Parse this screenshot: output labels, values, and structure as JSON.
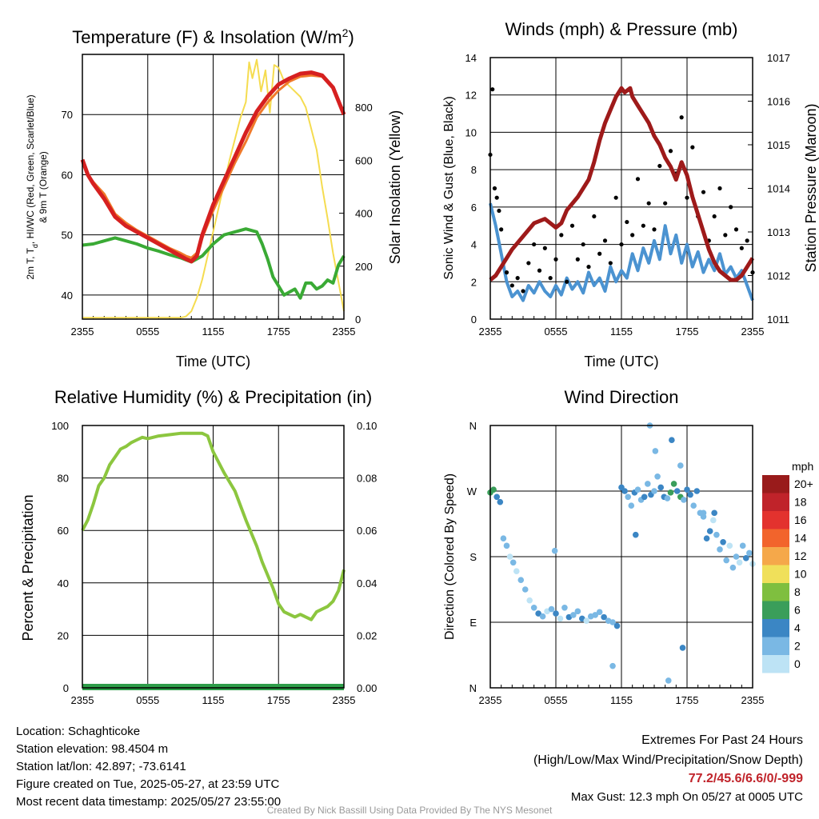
{
  "footer": {
    "location": "Location: Schaghticoke",
    "elevation": "Station elevation: 98.4504 m",
    "latlon": "Station lat/lon: 42.897; -73.6141",
    "created": "Figure created on Tue, 2025-05-27, at 23:59 UTC",
    "recent": "Most recent data timestamp: 2025/05/27 23:55:00",
    "extremes_title": "Extremes For Past 24 Hours",
    "extremes_sub": "(High/Low/Max Wind/Precipitation/Snow Depth)",
    "extremes_values": "77.2/45.6/6.6/0/-999",
    "max_gust": "Max Gust: 12.3 mph On 05/27 at 0005 UTC",
    "credit": "Created By Nick Bassill Using Data Provided By The NYS Mesonet"
  },
  "colors": {
    "temp": "#d62020",
    "temp_9m": "#f07a2a",
    "hiwc": "#e04030",
    "dewpoint": "#3aaa35",
    "solar": "#f5dc50",
    "rh": "#8cc63f",
    "precip": "#2e9e4a",
    "wind": "#4b93d1",
    "gust": "#000000",
    "pressure": "#9e1a1a"
  },
  "chart_data": [
    {
      "id": "temp",
      "type": "line",
      "title": "Temperature (F) & Insolation (W/m",
      "title_sup": "2",
      "title_end": ")",
      "xlabel": "Time (UTC)",
      "ylabel_lines": [
        "2m T, T",
        "d",
        ", HI/WC (Red, Green, Scarlet/Blue)",
        "& 9m T (Orange)"
      ],
      "y2label": "Solar Insolation (Yellow)",
      "x_ticks": [
        "2355",
        "0555",
        "1155",
        "1755",
        "2355"
      ],
      "x_hours": [
        0,
        6,
        12,
        18,
        24
      ],
      "xlim": [
        0,
        24
      ],
      "ylim": [
        36,
        80
      ],
      "y_ticks": [
        40,
        50,
        60,
        70
      ],
      "y2lim": [
        0,
        1000
      ],
      "y2_ticks": [
        0,
        200,
        400,
        600,
        800
      ],
      "series": [
        {
          "name": "2m T",
          "color": "#d62020",
          "width": 5,
          "axis": "y",
          "x": [
            0,
            0.5,
            1,
            2,
            3,
            4,
            5,
            6,
            7,
            8,
            9,
            9.5,
            10,
            10.5,
            11,
            12,
            13,
            14,
            15,
            16,
            17,
            18,
            19,
            20,
            21,
            22,
            23,
            24
          ],
          "y": [
            62.5,
            60,
            58.5,
            56,
            53,
            51.5,
            50.5,
            49.5,
            48.5,
            47.5,
            46.5,
            46,
            45.6,
            46.5,
            50,
            55,
            59,
            63,
            67,
            70.5,
            73,
            75,
            76,
            76.8,
            77,
            76.5,
            74.5,
            70
          ]
        },
        {
          "name": "9m T",
          "color": "#f07a2a",
          "width": 3,
          "axis": "y",
          "x": [
            0,
            0.5,
            1,
            2,
            3,
            4,
            5,
            6,
            7,
            8,
            9,
            9.5,
            10,
            10.5,
            11,
            12,
            13,
            14,
            15,
            16,
            17,
            18,
            19,
            20,
            21,
            22,
            23,
            24
          ],
          "y": [
            62,
            60,
            58.8,
            56.8,
            53.5,
            52,
            50.8,
            49.8,
            48.8,
            47.8,
            47,
            46.5,
            46.2,
            47,
            49.5,
            54,
            58,
            62,
            65.5,
            69.5,
            72,
            74,
            75.5,
            76.3,
            76.5,
            76.3,
            74.5,
            70
          ]
        },
        {
          "name": "Td",
          "color": "#3aaa35",
          "width": 4,
          "axis": "y",
          "x": [
            0,
            1,
            2,
            3,
            4,
            5,
            6,
            7,
            8,
            9,
            10,
            11,
            12,
            13,
            14,
            15,
            16,
            16.5,
            17,
            17.5,
            18,
            18.5,
            19,
            19.5,
            20,
            20.5,
            21,
            21.5,
            22,
            22.5,
            23,
            23.5,
            24
          ],
          "y": [
            48.3,
            48.5,
            49,
            49.5,
            49,
            48.5,
            47.8,
            47.3,
            46.7,
            46.2,
            45.5,
            46.5,
            48.5,
            50,
            50.5,
            51,
            50.5,
            48.5,
            46,
            43,
            41.5,
            40,
            40.5,
            41,
            39.5,
            42,
            42,
            41,
            41.5,
            42.5,
            42,
            45,
            46.5
          ]
        },
        {
          "name": "Solar",
          "color": "#f5dc50",
          "width": 2,
          "axis": "y2",
          "x": [
            0,
            3,
            6,
            8,
            9,
            9.5,
            10,
            10.5,
            11,
            11.5,
            12,
            12.5,
            13,
            13.5,
            14,
            14.5,
            15,
            15.3,
            15.6,
            16,
            16.4,
            16.8,
            17.2,
            17.6,
            18,
            18.5,
            19,
            19.5,
            20,
            20.5,
            21,
            21.5,
            22,
            22.5,
            23,
            23.5,
            24
          ],
          "y": [
            5,
            5,
            5,
            5,
            5,
            10,
            30,
            80,
            150,
            240,
            330,
            420,
            510,
            600,
            680,
            760,
            820,
            970,
            910,
            980,
            860,
            940,
            780,
            960,
            950,
            900,
            880,
            860,
            840,
            800,
            720,
            640,
            500,
            380,
            250,
            140,
            30
          ]
        }
      ]
    },
    {
      "id": "winds",
      "type": "line",
      "title": "Winds (mph) & Pressure (mb)",
      "xlabel": "Time (UTC)",
      "ylabel": "Sonic Wind & Gust (Blue, Black)",
      "y2label": "Station Pressure (Maroon)",
      "x_ticks": [
        "2355",
        "0555",
        "1155",
        "1755",
        "2355"
      ],
      "x_hours": [
        0,
        6,
        12,
        18,
        24
      ],
      "xlim": [
        0,
        24
      ],
      "ylim": [
        0,
        14
      ],
      "y_ticks": [
        0,
        2,
        4,
        6,
        8,
        10,
        12,
        14
      ],
      "y2lim": [
        1011,
        1017
      ],
      "y2_ticks": [
        1011,
        1012,
        1013,
        1014,
        1015,
        1016,
        1017
      ],
      "wind": {
        "x": [
          0,
          0.5,
          1,
          1.5,
          2,
          2.5,
          3,
          3.5,
          4,
          4.5,
          5,
          5.5,
          6,
          6.5,
          7,
          7.5,
          8,
          8.5,
          9,
          9.5,
          10,
          10.5,
          11,
          11.5,
          12,
          12.5,
          13,
          13.5,
          14,
          14.5,
          15,
          15.5,
          16,
          16.5,
          17,
          17.5,
          18,
          18.5,
          19,
          19.5,
          20,
          20.5,
          21,
          21.5,
          22,
          22.5,
          23,
          23.5,
          24
        ],
        "y": [
          6.2,
          5,
          3.5,
          2,
          1.2,
          1.5,
          1,
          1.8,
          1.4,
          2,
          1.5,
          1.2,
          1.8,
          1.3,
          2.2,
          1.6,
          2,
          1.4,
          2.5,
          1.8,
          2.2,
          1.5,
          2.8,
          2,
          2.6,
          2.2,
          3.5,
          2.6,
          3.8,
          3,
          4.2,
          3.2,
          5,
          3.5,
          4.5,
          3,
          4,
          2.8,
          3.6,
          2.5,
          3.2,
          2.6,
          3.5,
          2.4,
          2.8,
          2.2,
          2.6,
          1.8,
          1
        ]
      },
      "gust": {
        "x": [
          0,
          0.2,
          0.4,
          0.6,
          0.8,
          1,
          1.5,
          2,
          2.5,
          3,
          3.5,
          4,
          4.5,
          5,
          5.5,
          6,
          6.5,
          7,
          7.5,
          8,
          8.5,
          9,
          9.5,
          10,
          10.5,
          11,
          11.5,
          12,
          12.5,
          13,
          13.5,
          14,
          14.5,
          15,
          15.5,
          16,
          16.5,
          17,
          17.5,
          18,
          18.5,
          19,
          19.5,
          20,
          20.5,
          21,
          21.5,
          22,
          22.5,
          23,
          23.5,
          24
        ],
        "y": [
          8.8,
          12.3,
          7,
          6.5,
          5.8,
          4.8,
          2.5,
          1.8,
          2.2,
          1.5,
          3,
          4,
          2.6,
          3.8,
          2.2,
          3.2,
          4.5,
          2,
          5,
          3.2,
          4,
          2.8,
          5.5,
          3.5,
          4.2,
          3,
          6.5,
          4,
          5.2,
          4.5,
          7.5,
          5,
          6.2,
          4.8,
          8.2,
          6.2,
          9,
          7.8,
          10.8,
          6.5,
          9.2,
          5.5,
          6.8,
          4.2,
          5.5,
          7,
          4.5,
          6,
          4.8,
          3.8,
          4.2,
          2.5
        ]
      },
      "pressure": {
        "x": [
          0,
          0.5,
          1,
          2,
          3,
          4,
          5,
          6,
          6.5,
          7,
          8,
          9,
          9.5,
          10,
          10.5,
          11,
          11.5,
          12,
          12.3,
          12.8,
          13,
          13.5,
          14,
          14.5,
          15,
          15.5,
          16,
          16.5,
          17,
          17.5,
          18,
          18.5,
          19,
          19.5,
          20,
          20.5,
          21,
          21.5,
          22,
          22.5,
          23,
          23.5,
          24
        ],
        "y": [
          1011.9,
          1012,
          1012.2,
          1012.6,
          1012.9,
          1013.2,
          1013.3,
          1013.1,
          1013.2,
          1013.5,
          1013.8,
          1014.2,
          1014.6,
          1015.1,
          1015.5,
          1015.8,
          1016.1,
          1016.3,
          1016.2,
          1016.3,
          1016.1,
          1015.9,
          1015.7,
          1015.5,
          1015.2,
          1015,
          1014.7,
          1014.5,
          1014.2,
          1014.6,
          1014.3,
          1013.8,
          1013.4,
          1013,
          1012.6,
          1012.3,
          1012.1,
          1012,
          1011.9,
          1011.9,
          1012,
          1012.2,
          1012.4
        ]
      }
    },
    {
      "id": "rh",
      "type": "line",
      "title": "Relative Humidity (%) & Precipitation (in)",
      "ylabel": "Percent & Precipitation",
      "x_ticks": [
        "2355",
        "0555",
        "1155",
        "1755",
        "2355"
      ],
      "x_hours": [
        0,
        6,
        12,
        18,
        24
      ],
      "xlim": [
        0,
        24
      ],
      "ylim": [
        0,
        100
      ],
      "y_ticks": [
        0,
        20,
        40,
        60,
        80,
        100
      ],
      "y2lim": [
        0,
        0.1
      ],
      "y2_ticks": [
        "0.00",
        "0.02",
        "0.04",
        "0.06",
        "0.08",
        "0.10"
      ],
      "rh": {
        "x": [
          0,
          0.5,
          1,
          1.5,
          2,
          2.5,
          3,
          3.5,
          4,
          4.5,
          5,
          5.5,
          6,
          7,
          8,
          9,
          10,
          10.5,
          11,
          11.5,
          12,
          13,
          14,
          15,
          16,
          16.5,
          17,
          17.5,
          18,
          18.5,
          19,
          19.5,
          20,
          20.5,
          21,
          21.5,
          22,
          22.5,
          23,
          23.5,
          24
        ],
        "y": [
          60,
          64,
          70,
          77,
          80,
          85,
          88,
          91,
          92,
          93.5,
          94.5,
          95.5,
          95,
          96,
          96.5,
          97,
          97,
          97,
          97,
          96,
          90,
          82,
          75,
          64,
          54,
          48,
          43,
          38,
          32,
          29,
          28,
          27,
          28,
          27,
          26,
          29,
          30,
          31,
          33,
          37,
          45
        ]
      },
      "precip": {
        "x": [
          0,
          24
        ],
        "y": [
          0,
          0
        ]
      }
    },
    {
      "id": "direction",
      "type": "scatter",
      "title": "Wind Direction",
      "ylabel": "Direction (Colored By Speed)",
      "x_ticks": [
        "2355",
        "0555",
        "1155",
        "1755",
        "2355"
      ],
      "x_hours": [
        0,
        6,
        12,
        18,
        24
      ],
      "xlim": [
        0,
        24
      ],
      "ylim": [
        0,
        360
      ],
      "y_ticks": [
        "N",
        "E",
        "S",
        "W",
        "N"
      ],
      "y_tick_values": [
        0,
        90,
        180,
        270,
        360
      ],
      "points": {
        "x": [
          0,
          0.3,
          0.6,
          0.9,
          1.2,
          1.5,
          1.8,
          2.1,
          2.4,
          2.8,
          3.2,
          3.6,
          4,
          4.4,
          4.8,
          5.2,
          5.6,
          6,
          6.4,
          6.8,
          7.2,
          7.6,
          8,
          8.4,
          8.8,
          9.2,
          9.6,
          10,
          10.4,
          10.8,
          11.2,
          11.6,
          12,
          12.3,
          12.6,
          12.9,
          13.2,
          13.5,
          13.8,
          14.1,
          14.4,
          14.7,
          15,
          15.3,
          15.6,
          15.9,
          16.2,
          16.5,
          16.8,
          17.1,
          17.4,
          17.7,
          18,
          18.3,
          18.6,
          18.9,
          19.2,
          19.5,
          19.8,
          20.1,
          20.4,
          20.7,
          21,
          21.3,
          21.6,
          21.9,
          22.2,
          22.5,
          22.8,
          23.1,
          23.4,
          23.7,
          24,
          14.6,
          15.1,
          16.6,
          17.4,
          11.2,
          17.6,
          16.3,
          5.9,
          13.3,
          19.5,
          20.5
        ],
        "y": [
          268,
          272,
          262,
          255,
          205,
          195,
          180,
          172,
          160,
          148,
          135,
          120,
          110,
          102,
          98,
          105,
          108,
          102,
          95,
          110,
          97,
          100,
          105,
          95,
          92,
          98,
          100,
          104,
          97,
          92,
          90,
          85,
          275,
          270,
          262,
          250,
          268,
          272,
          258,
          262,
          280,
          265,
          270,
          290,
          275,
          262,
          260,
          268,
          280,
          270,
          262,
          258,
          272,
          265,
          250,
          270,
          240,
          235,
          205,
          215,
          230,
          210,
          190,
          200,
          175,
          195,
          165,
          180,
          172,
          195,
          178,
          185,
          170,
          360,
          325,
          340,
          305,
          30,
          55,
          10,
          188,
          210,
          240,
          240
        ],
        "speed": [
          6,
          5,
          4,
          4,
          1,
          1,
          0,
          1,
          0,
          1,
          1,
          0,
          2,
          3,
          1,
          0,
          2,
          3,
          0,
          2,
          3,
          1,
          2,
          3,
          0,
          2,
          1,
          2,
          3,
          2,
          1,
          3,
          4,
          3,
          2,
          1,
          3,
          2,
          1,
          4,
          2,
          3,
          2,
          1,
          3,
          4,
          2,
          5,
          6,
          3,
          6,
          2,
          3,
          4,
          2,
          3,
          1,
          2,
          3,
          4,
          0,
          2,
          1,
          3,
          2,
          0,
          1,
          2,
          0,
          1,
          3,
          2,
          0,
          1,
          2,
          3,
          2,
          2,
          3,
          2,
          1,
          4,
          2,
          3
        ]
      },
      "colorbar": {
        "unit": "mph",
        "labels": [
          "20+",
          "18",
          "16",
          "14",
          "12",
          "10",
          "8",
          "6",
          "4",
          "2",
          "0"
        ],
        "colors": [
          "#991b1b",
          "#c0232a",
          "#e3322e",
          "#f2642c",
          "#f5a84a",
          "#f0e05a",
          "#7fbf3f",
          "#3a9e5a",
          "#3b86c4",
          "#7ab8e4",
          "#bde3f5"
        ]
      }
    }
  ]
}
